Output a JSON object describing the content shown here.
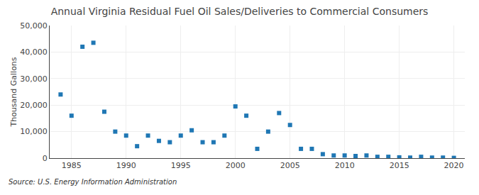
{
  "chart_data": {
    "type": "scatter",
    "title": "Annual Virginia Residual Fuel Oil Sales/Deliveries to Commercial Consumers",
    "ylabel": "Thousand Gallons",
    "annotations": [
      "Source: U.S. Energy Information Administration"
    ],
    "x": [
      1984,
      1985,
      1986,
      1987,
      1988,
      1989,
      1990,
      1991,
      1992,
      1993,
      1994,
      1995,
      1996,
      1997,
      1998,
      1999,
      2000,
      2001,
      2002,
      2003,
      2004,
      2005,
      2006,
      2007,
      2008,
      2009,
      2010,
      2011,
      2012,
      2013,
      2014,
      2015,
      2016,
      2017,
      2018,
      2019,
      2020
    ],
    "values": [
      24000,
      16000,
      42000,
      43500,
      17500,
      10000,
      8500,
      4500,
      8500,
      6500,
      6000,
      8500,
      10500,
      6000,
      6000,
      8500,
      19500,
      16000,
      3500,
      10000,
      17000,
      12500,
      3500,
      3500,
      1500,
      1000,
      1000,
      800,
      1000,
      500,
      500,
      300,
      200,
      500,
      200,
      200,
      100
    ],
    "marker": "square",
    "xlim": [
      1983,
      2021
    ],
    "xticks": [
      1985,
      1990,
      1995,
      2000,
      2005,
      2010,
      2015,
      2020
    ],
    "ylim": [
      0,
      50000
    ],
    "yticks": [
      0,
      {
        "value": 10000,
        "label": "10,000"
      },
      {
        "value": 20000,
        "label": "20,000"
      },
      {
        "value": 30000,
        "label": "30,000"
      },
      {
        "value": 40000,
        "label": "40,000"
      },
      {
        "value": 50000,
        "label": "50,000"
      }
    ],
    "grid": true
  }
}
